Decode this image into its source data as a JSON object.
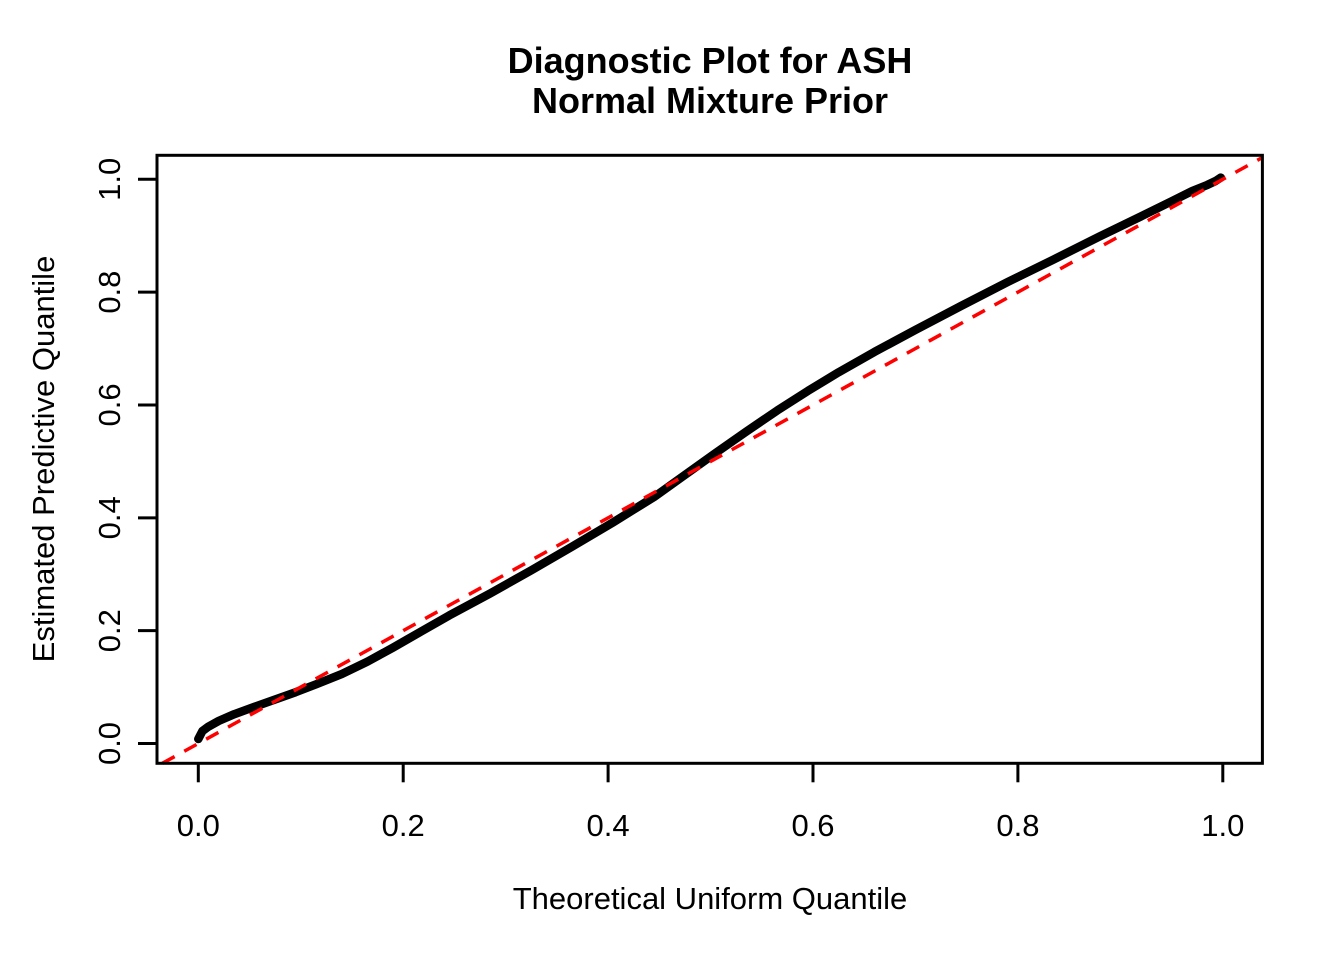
{
  "figure": {
    "title_line1": "Diagnostic Plot for ASH",
    "title_line2": "Normal Mixture Prior",
    "x_axis_label": "Theoretical Uniform Quantile",
    "y_axis_label": "Estimated Predictive Quantile"
  },
  "chart_data": {
    "type": "line",
    "subtype": "uniform-qq-diagnostic-plot",
    "title": "Diagnostic Plot for ASH",
    "subtitle": "Normal Mixture Prior",
    "xlabel": "Theoretical Uniform Quantile",
    "ylabel": "Estimated Predictive Quantile",
    "xlim": [
      -0.04,
      1.04
    ],
    "ylim": [
      -0.04,
      1.04
    ],
    "grid": false,
    "legend_position": null,
    "background_color": "#ffffff",
    "axis_color": "#000000",
    "x_ticks": {
      "values": [
        0.0,
        0.2,
        0.4,
        0.6,
        0.8,
        1.0
      ],
      "labels": [
        "0.0",
        "0.2",
        "0.4",
        "0.6",
        "0.8",
        "1.0"
      ]
    },
    "y_ticks": {
      "values": [
        0.0,
        0.2,
        0.4,
        0.6,
        0.8,
        1.0
      ],
      "labels": [
        "0.0",
        "0.2",
        "0.4",
        "0.6",
        "0.8",
        "1.0"
      ]
    },
    "series": [
      {
        "name": "estimated-predictive-quantile-curve",
        "type": "curve",
        "color": "#000000",
        "line_width": 8.5,
        "points": [
          [
            0.0,
            0.008
          ],
          [
            0.004,
            0.022
          ],
          [
            0.01,
            0.03
          ],
          [
            0.02,
            0.04
          ],
          [
            0.035,
            0.052
          ],
          [
            0.055,
            0.065
          ],
          [
            0.075,
            0.078
          ],
          [
            0.095,
            0.091
          ],
          [
            0.115,
            0.105
          ],
          [
            0.14,
            0.123
          ],
          [
            0.165,
            0.145
          ],
          [
            0.19,
            0.17
          ],
          [
            0.215,
            0.196
          ],
          [
            0.245,
            0.227
          ],
          [
            0.285,
            0.266
          ],
          [
            0.325,
            0.307
          ],
          [
            0.365,
            0.349
          ],
          [
            0.405,
            0.392
          ],
          [
            0.445,
            0.437
          ],
          [
            0.475,
            0.476
          ],
          [
            0.505,
            0.515
          ],
          [
            0.535,
            0.553
          ],
          [
            0.565,
            0.59
          ],
          [
            0.595,
            0.625
          ],
          [
            0.625,
            0.658
          ],
          [
            0.66,
            0.694
          ],
          [
            0.7,
            0.733
          ],
          [
            0.745,
            0.776
          ],
          [
            0.79,
            0.818
          ],
          [
            0.835,
            0.858
          ],
          [
            0.88,
            0.899
          ],
          [
            0.92,
            0.934
          ],
          [
            0.95,
            0.961
          ],
          [
            0.97,
            0.979
          ],
          [
            0.985,
            0.99
          ],
          [
            0.993,
            0.997
          ],
          [
            0.998,
            1.003
          ]
        ]
      },
      {
        "name": "reference-diagonal-y-equals-x",
        "type": "abline",
        "slope": 1,
        "intercept": 0,
        "color": "#FF0000",
        "line_style": "dashed",
        "dash_pattern": [
          14,
          11
        ],
        "line_width": 3.5
      }
    ]
  }
}
